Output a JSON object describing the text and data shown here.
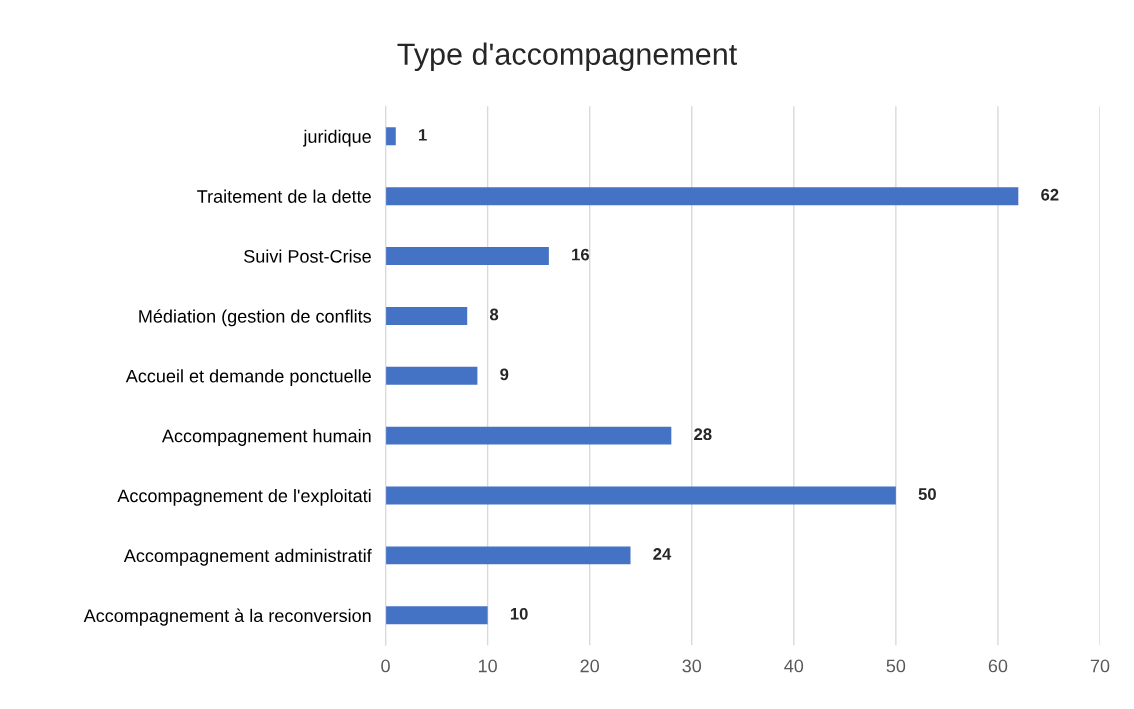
{
  "chart_data": {
    "type": "bar",
    "orientation": "horizontal",
    "title": "Type d'accompagnement",
    "categories": [
      "juridique",
      "Traitement de la dette",
      "Suivi Post-Crise",
      "Médiation (gestion de conflits",
      "Accueil et demande ponctuelle",
      "Accompagnement humain",
      "Accompagnement de l'exploitati",
      "Accompagnement administratif",
      "Accompagnement à la reconversion"
    ],
    "values": [
      1,
      62,
      16,
      8,
      9,
      28,
      50,
      24,
      10
    ],
    "color": "#4472c4",
    "xlim": [
      0,
      70
    ],
    "xticks": [
      0,
      10,
      20,
      30,
      40,
      50,
      60,
      70
    ],
    "grid": "x",
    "data_labels": true
  }
}
